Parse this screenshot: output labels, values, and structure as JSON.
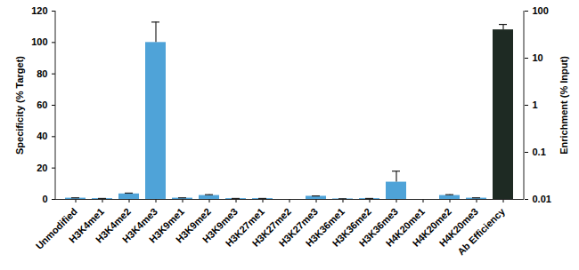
{
  "chart_data": {
    "type": "bar",
    "categories": [
      "Unmodified",
      "H3K4me1",
      "H3K4me2",
      "H3K4me3",
      "H3K9me1",
      "H3K9me2",
      "H3K9me3",
      "H3K27me1",
      "H3K27me2",
      "H3K27me3",
      "H3K36me1",
      "H3K36me2",
      "H3K36me3",
      "H4K20me1",
      "H4K20me2",
      "H4K20me3",
      "Ab Efficiency"
    ],
    "ylabel": "Specificity (% Target)",
    "y2label": "Enrichment (% Input)",
    "ylim": [
      0,
      120
    ],
    "yticks": [
      0,
      20,
      40,
      60,
      80,
      100,
      120
    ],
    "y2lim": [
      0.01,
      100
    ],
    "y2ticks": [
      0.01,
      0.1,
      1,
      10,
      100
    ],
    "log": "y2",
    "series": [
      {
        "color": "#4fa3d8",
        "values": [
          0.8,
          0.5,
          3.5,
          100,
          0.8,
          2.5,
          0.5,
          0.5,
          0,
          2,
          0.3,
          0.5,
          11,
          0,
          2.5,
          0.8,
          null
        ],
        "errors": [
          0.2,
          0.1,
          0.5,
          13,
          0.2,
          0.5,
          0.1,
          0.1,
          0,
          0.2,
          0.1,
          0.1,
          7,
          0,
          0.5,
          0.2,
          null
        ]
      },
      {
        "color": "#1e2a23",
        "axis": "y2",
        "values": [
          null,
          null,
          null,
          null,
          null,
          null,
          null,
          null,
          null,
          null,
          null,
          null,
          null,
          null,
          null,
          null,
          40
        ],
        "errors": [
          null,
          null,
          null,
          null,
          null,
          null,
          null,
          null,
          null,
          null,
          null,
          null,
          null,
          null,
          null,
          null,
          12
        ]
      }
    ]
  }
}
